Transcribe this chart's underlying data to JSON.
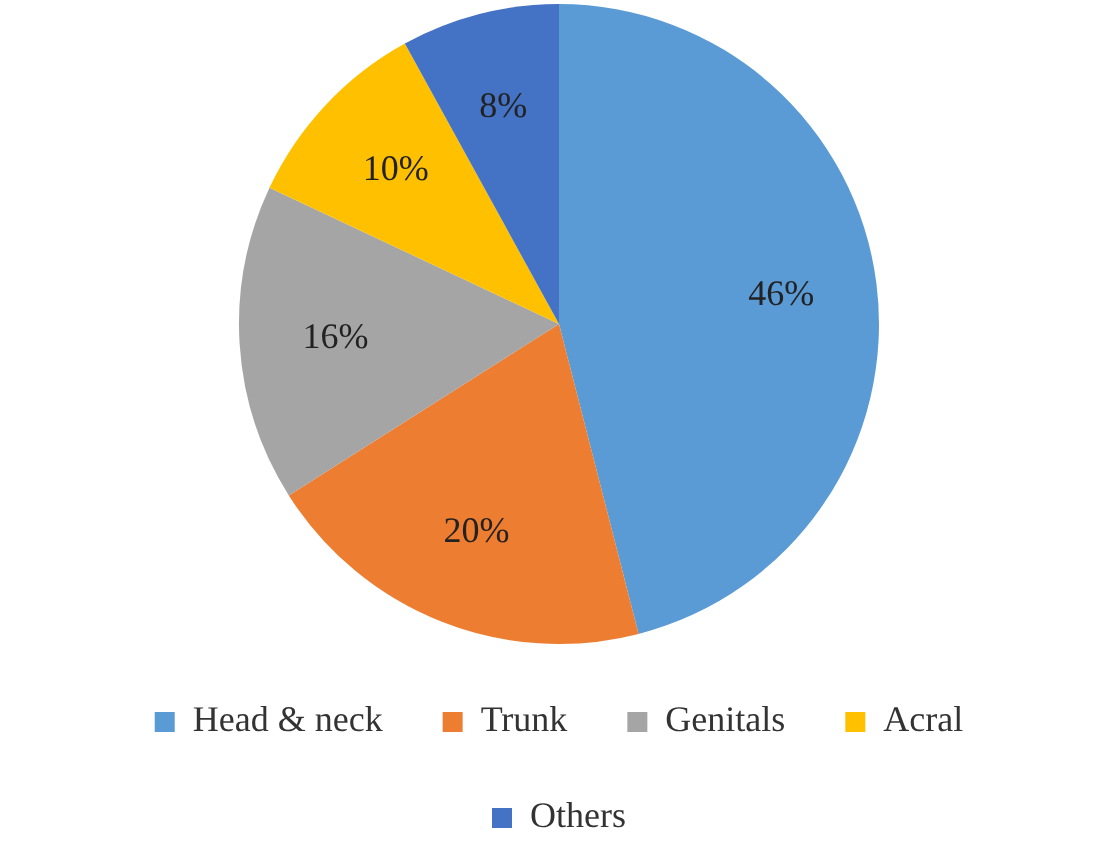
{
  "chart_data": {
    "type": "pie",
    "categories": [
      "Head & neck",
      "Trunk",
      "Genitals",
      "Acral",
      "Others"
    ],
    "values": [
      46,
      20,
      16,
      10,
      8
    ],
    "colors": [
      "#5b9bd5",
      "#ed7d31",
      "#a5a5a5",
      "#ffc000",
      "#4472c4"
    ],
    "value_labels": [
      "46%",
      "20%",
      "16%",
      "10%",
      "8%"
    ],
    "legend": "bottom"
  }
}
